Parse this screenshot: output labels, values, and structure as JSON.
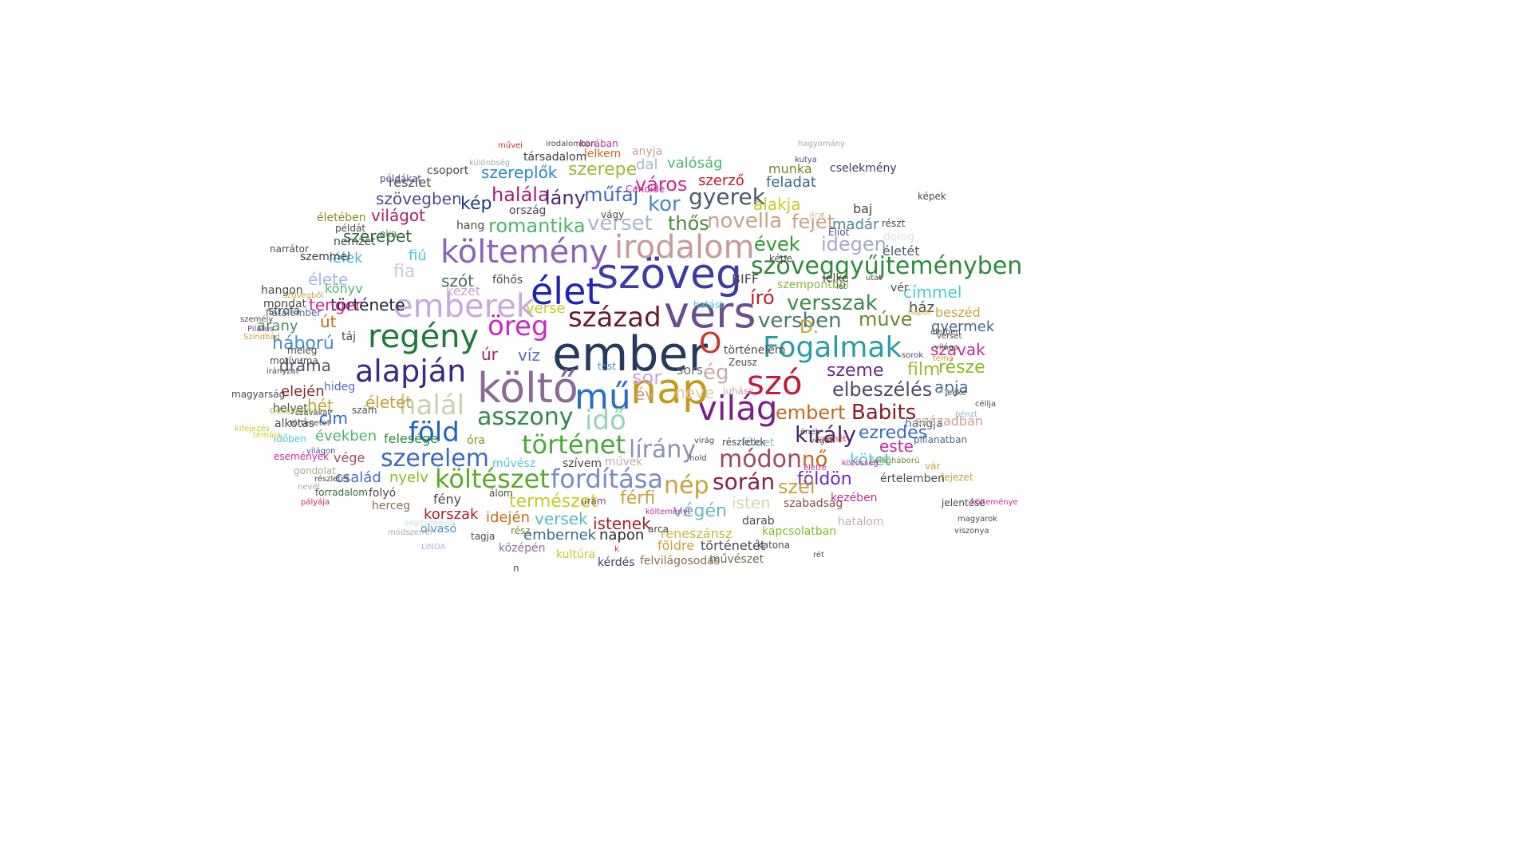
{
  "words": [
    {
      "text": "ember",
      "color": "#243a5e"
    },
    {
      "text": "vers",
      "color": "#6a4f8f"
    },
    {
      "text": "szöveg",
      "color": "#3f3aa8"
    },
    {
      "text": "költő",
      "color": "#8b6a9a"
    },
    {
      "text": "világ",
      "color": "#7d1f8a"
    },
    {
      "text": "nap",
      "color": "#c69a18"
    },
    {
      "text": "mű",
      "color": "#2a6fc4"
    },
    {
      "text": "élet",
      "color": "#1d22b8"
    },
    {
      "text": "O",
      "color": "#d0322c"
    },
    {
      "text": "szó",
      "color": "#c41c3a"
    },
    {
      "text": "emberek",
      "color": "#c8a8e0"
    },
    {
      "text": "költemény",
      "color": "#8b63b8"
    },
    {
      "text": "irodalom",
      "color": "#c79a9a"
    },
    {
      "text": "regény",
      "color": "#1e7a3a"
    },
    {
      "text": "alapján",
      "color": "#3a2a86"
    },
    {
      "text": "halál",
      "color": "#c9d1a8"
    },
    {
      "text": "század",
      "color": "#6b1a2a"
    },
    {
      "text": "Fogalmak",
      "color": "#2a9ea8"
    },
    {
      "text": "idő",
      "color": "#96d5b8"
    },
    {
      "text": "asszony",
      "color": "#2e8a4a"
    },
    {
      "text": "föld",
      "color": "#1e64c4"
    },
    {
      "text": "történet",
      "color": "#4aaa3a"
    },
    {
      "text": "szerelem",
      "color": "#3a6ac4"
    },
    {
      "text": "költészet",
      "color": "#5aaa2a"
    },
    {
      "text": "fordítása",
      "color": "#7a8ac9"
    },
    {
      "text": "nép",
      "color": "#c9a23a"
    },
    {
      "text": "módon",
      "color": "#a24a62"
    },
    {
      "text": "király",
      "color": "#4a2a6e"
    },
    {
      "text": "során",
      "color": "#8a1e4a"
    },
    {
      "text": "lírány",
      "color": "#8a94b8"
    },
    {
      "text": "öreg",
      "color": "#c92ac4"
    },
    {
      "text": "szöveggyűjteményben",
      "color": "#2e8a3a"
    },
    {
      "text": "elbeszélés",
      "color": "#4a4a6e"
    },
    {
      "text": "Babits",
      "color": "#8a1a2a"
    },
    {
      "text": "embert",
      "color": "#c46a1a"
    },
    {
      "text": "versszak",
      "color": "#3a8a4a"
    },
    {
      "text": "versben",
      "color": "#4a7a6a"
    },
    {
      "text": "novella",
      "color": "#c9a08a"
    },
    {
      "text": "romantika",
      "color": "#4ab86a"
    },
    {
      "text": "verset",
      "color": "#a8b8c9"
    },
    {
      "text": "gyerek",
      "color": "#4a5a6e"
    },
    {
      "text": "kor",
      "color": "#4a8ac4"
    },
    {
      "text": "halála",
      "color": "#a81e6e"
    },
    {
      "text": "műfaj",
      "color": "#3a6ac4"
    },
    {
      "text": "kép",
      "color": "#1e3a8a"
    },
    {
      "text": "város",
      "color": "#c92a9a"
    },
    {
      "text": "szerepe",
      "color": "#a2b83a"
    },
    {
      "text": "szereplők",
      "color": "#2a8ac9"
    },
    {
      "text": "idegen",
      "color": "#a8a8c9"
    },
    {
      "text": "évek",
      "color": "#2e9a2e"
    },
    {
      "text": "író",
      "color": "#c41c2a"
    },
    {
      "text": "fejét",
      "color": "#c9a08a"
    },
    {
      "text": "thős",
      "color": "#4a8a3a"
    },
    {
      "text": "ég",
      "color": "#c9a8a8"
    },
    {
      "text": "múve",
      "color": "#6a8a2a"
    },
    {
      "text": "szeme",
      "color": "#6a2a8a"
    },
    {
      "text": "film",
      "color": "#a2b83a"
    },
    {
      "text": "része",
      "color": "#8ab82a"
    },
    {
      "text": "apja",
      "color": "#4a6a8a"
    },
    {
      "text": "ezredes",
      "color": "#3a6ac4"
    },
    {
      "text": "nő",
      "color": "#c46a1a"
    },
    {
      "text": "este",
      "color": "#c92a9a"
    },
    {
      "text": "kötet",
      "color": "#4ac9d5"
    },
    {
      "text": "földön",
      "color": "#6a2ac4"
    },
    {
      "text": "szél",
      "color": "#c9a23a"
    },
    {
      "text": "férfi",
      "color": "#c9a23a"
    },
    {
      "text": "természet",
      "color": "#c9c92a"
    },
    {
      "text": "versek",
      "color": "#5ab8c4"
    },
    {
      "text": "istenek",
      "color": "#a81e2a"
    },
    {
      "text": "végén",
      "color": "#6ab8c9"
    },
    {
      "text": "isten",
      "color": "#d8d8a8"
    },
    {
      "text": "szabadság",
      "color": "#8a4a4a"
    },
    {
      "text": "sor",
      "color": "#c9a8e0"
    },
    {
      "text": "sors",
      "color": "#6a6a6a"
    },
    {
      "text": "év",
      "color": "#c9a08a"
    },
    {
      "text": "neve",
      "color": "#e0c9a8"
    },
    {
      "text": "fia",
      "color": "#c9c9d8"
    },
    {
      "text": "szót",
      "color": "#4a6a6e"
    },
    {
      "text": "élete",
      "color": "#a8b8e0"
    },
    {
      "text": "története",
      "color": "#1e1e2e"
    },
    {
      "text": "tenger",
      "color": "#c92a9a"
    },
    {
      "text": "út",
      "color": "#c46a1a"
    },
    {
      "text": "arany",
      "color": "#4a8a5a"
    },
    {
      "text": "háború",
      "color": "#4a8ac9"
    },
    {
      "text": "dráma",
      "color": "#4a5a6e"
    },
    {
      "text": "elején",
      "color": "#8a2a2a"
    },
    {
      "text": "életet",
      "color": "#c9a23a"
    },
    {
      "text": "hét",
      "color": "#c9a23a"
    },
    {
      "text": "cím",
      "color": "#2a6ac4"
    },
    {
      "text": "években",
      "color": "#4ab86a"
    },
    {
      "text": "felesége",
      "color": "#2e8a3a"
    },
    {
      "text": "óra",
      "color": "#8a8a2a"
    },
    {
      "text": "művész",
      "color": "#4ac9d5"
    },
    {
      "text": "vége",
      "color": "#a24a62"
    },
    {
      "text": "nyelv",
      "color": "#8ab82a"
    },
    {
      "text": "család",
      "color": "#4a6ac4"
    },
    {
      "text": "korszak",
      "color": "#a81e2a"
    },
    {
      "text": "fény",
      "color": "#4a4a4a"
    },
    {
      "text": "idején",
      "color": "#c96a1a"
    },
    {
      "text": "embernek",
      "color": "#3a6a8a"
    },
    {
      "text": "napon",
      "color": "#2a2a2a"
    },
    {
      "text": "reneszánsz",
      "color": "#c9b83a"
    },
    {
      "text": "kapcsolatban",
      "color": "#8ab82a"
    },
    {
      "text": "történetét",
      "color": "#4a4a4a"
    },
    {
      "text": "földre",
      "color": "#c9a23a"
    },
    {
      "text": "középén",
      "color": "#8a6aa8"
    },
    {
      "text": "kultúra",
      "color": "#c9c92a"
    },
    {
      "text": "felvilágosodás",
      "color": "#8a6a4a"
    },
    {
      "text": "művészet",
      "color": "#6a6a4a"
    },
    {
      "text": "kérdés",
      "color": "#3a3a6e"
    },
    {
      "text": "lány",
      "color": "#4a2a6e"
    },
    {
      "text": "dal",
      "color": "#a8b8c9"
    },
    {
      "text": "valóság",
      "color": "#4ab86a"
    },
    {
      "text": "szerző",
      "color": "#c41c2a"
    },
    {
      "text": "alakja",
      "color": "#c9c92a"
    },
    {
      "text": "feladat",
      "color": "#3a6a8a"
    },
    {
      "text": "munka",
      "color": "#6a8a2a"
    },
    {
      "text": "cselekmény",
      "color": "#3a3a6e"
    },
    {
      "text": "madár",
      "color": "#4a8a9a"
    },
    {
      "text": "részt",
      "color": "#4a4a4a"
    },
    {
      "text": "életét",
      "color": "#4a5a6e"
    },
    {
      "text": "címmel",
      "color": "#4ac9d5"
    },
    {
      "text": "ház",
      "color": "#4a4a4a"
    },
    {
      "text": "beszéd",
      "color": "#c9a23a"
    },
    {
      "text": "gyermek",
      "color": "#4a6a8a"
    },
    {
      "text": "szavak",
      "color": "#c92a9a"
    },
    {
      "text": "D.",
      "color": "#c9a23a"
    },
    {
      "text": "szerepet",
      "color": "#2e6a3a"
    },
    {
      "text": "világot",
      "color": "#a81e6e"
    },
    {
      "text": "szövegben",
      "color": "#4a4a8a"
    },
    {
      "text": "részlet",
      "color": "#4a4a4a"
    },
    {
      "text": "társadalom",
      "color": "#3a3a3a"
    },
    {
      "text": "csoport",
      "color": "#4a4a4a"
    },
    {
      "text": "fiú",
      "color": "#4ac9d5"
    },
    {
      "text": "lélek",
      "color": "#4ab8e0"
    },
    {
      "text": "főhős",
      "color": "#4a4a4a"
    },
    {
      "text": "kezét",
      "color": "#c9a8c9"
    },
    {
      "text": "könyv",
      "color": "#4ab86a"
    },
    {
      "text": "strófa",
      "color": "#4a4a4a"
    },
    {
      "text": "táj",
      "color": "#4a4a4a"
    },
    {
      "text": "víz",
      "color": "#5a6ac4"
    },
    {
      "text": "úr",
      "color": "#a81e6e"
    },
    {
      "text": "hang",
      "color": "#4a4a4a"
    },
    {
      "text": "ország",
      "color": "#4a4a4a"
    },
    {
      "text": "lelkem",
      "color": "#c96a1a"
    },
    {
      "text": "anyja",
      "color": "#c9a08a"
    },
    {
      "text": "verse",
      "color": "#c9c92a"
    },
    {
      "text": "hangon",
      "color": "#4a4a4a"
    },
    {
      "text": "mondat",
      "color": "#4a4a4a"
    },
    {
      "text": "szemmel",
      "color": "#3a3a3a"
    },
    {
      "text": "nemzet",
      "color": "#4a4a4a"
    },
    {
      "text": "narrátor",
      "color": "#4a4a4a"
    },
    {
      "text": "életében",
      "color": "#8a8a2a"
    },
    {
      "text": "példát",
      "color": "#4a4a4a"
    },
    {
      "text": "példákat",
      "color": "#4a4a8a"
    },
    {
      "text": "hideg",
      "color": "#4a6ac4"
    },
    {
      "text": "helyet",
      "color": "#4a4a4a"
    },
    {
      "text": "alkotás",
      "color": "#4a4a4a"
    },
    {
      "text": "magyarság",
      "color": "#4a4a4a"
    },
    {
      "text": "szám",
      "color": "#4a4a4a"
    },
    {
      "text": "időben",
      "color": "#4ac9d5"
    },
    {
      "text": "események",
      "color": "#c92a9a"
    },
    {
      "text": "gondolat",
      "color": "#a8a88a"
    },
    {
      "text": "forradalom",
      "color": "#3a6a3a"
    },
    {
      "text": "folyó",
      "color": "#4a4a4a"
    },
    {
      "text": "herceg",
      "color": "#8a6a4a"
    },
    {
      "text": "olvasó",
      "color": "#4a8ac9"
    },
    {
      "text": "tagja",
      "color": "#4a4a4a"
    },
    {
      "text": "rész",
      "color": "#6a8a2a"
    },
    {
      "text": "szívem",
      "color": "#4a4a4a"
    },
    {
      "text": "művek",
      "color": "#c9a8a8"
    },
    {
      "text": "uram",
      "color": "#8a4a4a"
    },
    {
      "text": "álom",
      "color": "#4a4a4a"
    },
    {
      "text": "földet",
      "color": "#8ab8c9"
    },
    {
      "text": "részletek",
      "color": "#4a4a4a"
    },
    {
      "text": "arca",
      "color": "#4a4a4a"
    },
    {
      "text": "katona",
      "color": "#4a4a4a"
    },
    {
      "text": "hatalom",
      "color": "#c9a8a8"
    },
    {
      "text": "darab",
      "color": "#4a4a4a"
    },
    {
      "text": "kezében",
      "color": "#c92a9a"
    },
    {
      "text": "értelemben",
      "color": "#4a4a4a"
    },
    {
      "text": "hangja",
      "color": "#4a6a8a"
    },
    {
      "text": "században",
      "color": "#c9a08a"
    },
    {
      "text": "vár",
      "color": "#c9a23a"
    },
    {
      "text": "pillanatban",
      "color": "#4a6a8a"
    },
    {
      "text": "történelem",
      "color": "#4a4a4a"
    },
    {
      "text": "Zeusz",
      "color": "#4a4a4a"
    },
    {
      "text": "képe",
      "color": "#4a4a4a"
    },
    {
      "text": "Éliot",
      "color": "#4a4a8a"
    },
    {
      "text": "baj",
      "color": "#4a4a4a"
    },
    {
      "text": "dolog",
      "color": "#e0e0e0"
    },
    {
      "text": "szempontból",
      "color": "#8ab83a"
    },
    {
      "text": "lelke",
      "color": "#4a4a4a"
    },
    {
      "text": "vér",
      "color": "#4a4a4a"
    },
    {
      "text": "líra",
      "color": "#e0d8a8"
    },
    {
      "text": "korában",
      "color": "#c92a9a"
    },
    {
      "text": "művei",
      "color": "#c92a2a"
    },
    {
      "text": "irodalomban",
      "color": "#4a4a4a"
    },
    {
      "text": "hagyomány",
      "color": "#a8a8a8"
    },
    {
      "text": "kutya",
      "color": "#4a4a8a"
    },
    {
      "text": "különbség",
      "color": "#a8a8a8"
    },
    {
      "text": "vágy",
      "color": "#4a4a4a"
    },
    {
      "text": "Candide",
      "color": "#c92a9a"
    },
    {
      "text": "képek",
      "color": "#4a4a4a"
    },
    {
      "text": "test",
      "color": "#4a8ac4"
    },
    {
      "text": "hatást",
      "color": "#4ac9d5"
    },
    {
      "text": "juhász",
      "color": "#c9a8a8"
    },
    {
      "text": "BIFF",
      "color": "#4a4a4a"
    },
    {
      "text": "oka",
      "color": "#4a8a4a"
    },
    {
      "text": "n",
      "color": "#4a4a4a"
    },
    {
      "text": "k",
      "color": "#c92a4a"
    },
    {
      "text": "LINDA",
      "color": "#c9a8e0"
    },
    {
      "text": "segítségével",
      "color": "#c9e0e0"
    },
    {
      "text": "módszerrel",
      "color": "#a8a8a8"
    },
    {
      "text": "szövegből",
      "color": "#c9a23a"
    },
    {
      "text": "fiatalember",
      "color": "#4a6a8a"
    },
    {
      "text": "személy",
      "color": "#4a4a4a"
    },
    {
      "text": "Pilátus",
      "color": "#6a4a8a"
    },
    {
      "text": "Szindbád",
      "color": "#c9a23a"
    },
    {
      "text": "motívuma",
      "color": "#4a4a4a"
    },
    {
      "text": "irányzat",
      "color": "#4a4a4a"
    },
    {
      "text": "meleg",
      "color": "#4a4a4a"
    },
    {
      "text": "kifejezés",
      "color": "#c9c92a"
    },
    {
      "text": "szavakat",
      "color": "#4a4a4a"
    },
    {
      "text": "témája",
      "color": "#c9c92a"
    },
    {
      "text": "Odüsszeusz",
      "color": "#8ab83a"
    },
    {
      "text": "törtenetet",
      "color": "#4a4a4a"
    },
    {
      "text": "világon",
      "color": "#4a4a8a"
    },
    {
      "text": "részletét",
      "color": "#4a4a4a"
    },
    {
      "text": "nevét",
      "color": "#a8a8a8"
    },
    {
      "text": "pályája",
      "color": "#c92a4a"
    },
    {
      "text": "jelentése",
      "color": "#4a4a4a"
    },
    {
      "text": "költeménye",
      "color": "#c92a9a"
    },
    {
      "text": "magyarok",
      "color": "#4a4a4a"
    },
    {
      "text": "viszonya",
      "color": "#4a4a4a"
    },
    {
      "text": "fejezet",
      "color": "#c9a23a"
    },
    {
      "text": "világháború",
      "color": "#6a8a2a"
    },
    {
      "text": "közösség",
      "color": "#c92a9a"
    },
    {
      "text": "életre",
      "color": "#c92a9a"
    },
    {
      "text": "pénzt",
      "color": "#8ab8c9"
    },
    {
      "text": "céllja",
      "color": "#4a4a4a"
    },
    {
      "text": "béke",
      "color": "#4a4a4a"
    },
    {
      "text": "Olej",
      "color": "#c9e0e0"
    },
    {
      "text": "verset",
      "color": "#4a4a4a"
    },
    {
      "text": "életben",
      "color": "#4a4a4a"
    },
    {
      "text": "napot",
      "color": "#c9a23a"
    },
    {
      "text": "világa",
      "color": "#4a4a4a"
    },
    {
      "text": "sorok",
      "color": "#4a4a4a"
    },
    {
      "text": "téma",
      "color": "#c9a23a"
    },
    {
      "text": "utat",
      "color": "#4a4a4a"
    },
    {
      "text": "lét",
      "color": "#4a4a4a"
    },
    {
      "text": "ének",
      "color": "#4a4a4a"
    },
    {
      "text": "szemét",
      "color": "#c92a2a"
    },
    {
      "text": "véget",
      "color": "#4a4a4a"
    },
    {
      "text": "virág",
      "color": "#4a4a4a"
    },
    {
      "text": "hold",
      "color": "#4a4a4a"
    },
    {
      "text": "költeményt",
      "color": "#c92a9a"
    },
    {
      "text": "rét",
      "color": "#4a4a4a"
    }
  ]
}
